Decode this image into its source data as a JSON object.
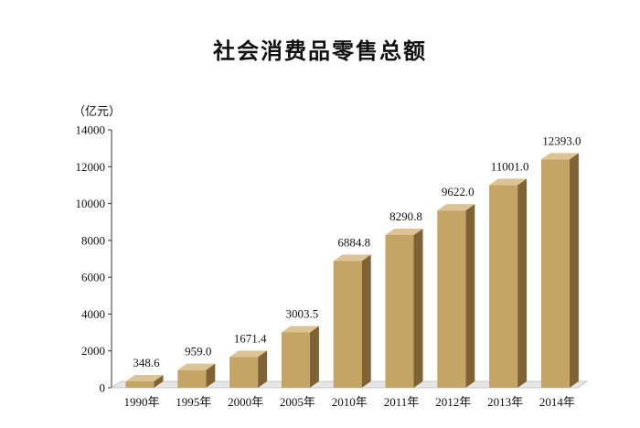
{
  "chart_data": {
    "type": "bar",
    "title": "社会消费品零售总额",
    "ylabel": "（亿元）",
    "categories": [
      "1990年",
      "1995年",
      "2000年",
      "2005年",
      "2010年",
      "2011年",
      "2012年",
      "2013年",
      "2014年"
    ],
    "values": [
      348.6,
      959.0,
      1671.4,
      3003.5,
      6884.8,
      8290.8,
      9622.0,
      11001.0,
      12393.0
    ],
    "value_labels": [
      "348.6",
      "959.0",
      "1671.4",
      "3003.5",
      "6884.8",
      "8290.8",
      "9622.0",
      "11001.0",
      "12393.0"
    ],
    "yticks": [
      0,
      2000,
      4000,
      6000,
      8000,
      10000,
      12000,
      14000
    ],
    "ylim": [
      0,
      14000
    ],
    "grid": false,
    "legend": "none",
    "colors": {
      "bar_front": "#c5a565",
      "bar_side": "#7f6335",
      "bar_top": "#dcc393",
      "floor": "#e6e6e6",
      "axis": "#333333"
    }
  }
}
